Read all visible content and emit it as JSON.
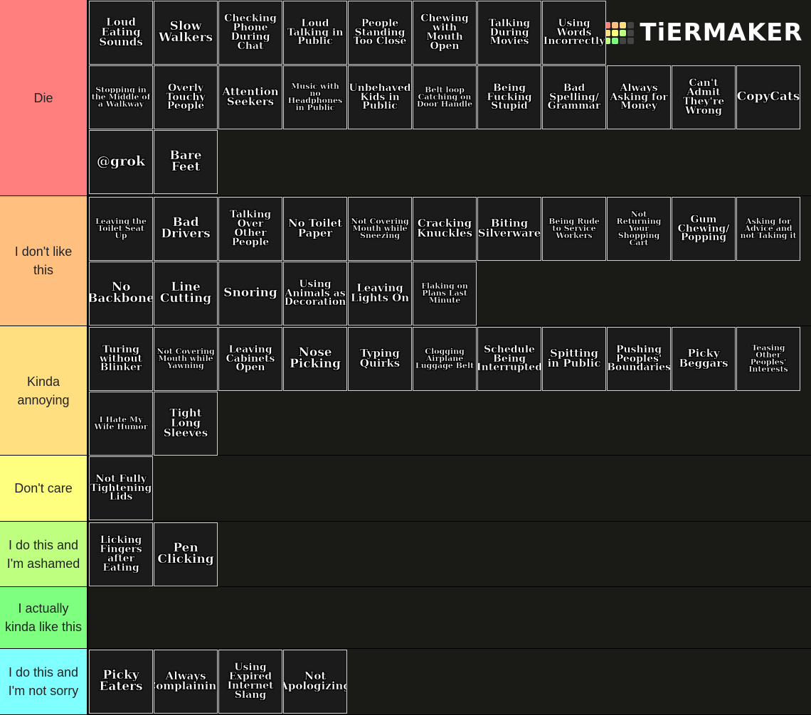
{
  "logo": "TiERMAKER",
  "tiers": [
    {
      "label": "Die",
      "color": "#ff7f7f",
      "items": [
        "Loud Eating Sounds",
        "Slow Walkers",
        "Checking Phone During Chat",
        "Loud Talking in Public",
        "People Standing Too Close",
        "Chewing with Mouth Open",
        "Talking During Movies",
        "Using Words Incorrectly",
        "Stopping in the Middle of a Walkway",
        "Overly Touchy People",
        "Attention Seekers",
        "Music with no Headphones in Public",
        "Unbehaved Kids in Public",
        "Belt loop Catching on Door Handle",
        "Being Fucking Stupid",
        "Bad Spelling/ Grammar",
        "Always Asking for Money",
        "Can't Admit They're Wrong",
        "CopyCats",
        "@grok",
        "Bare Feet"
      ]
    },
    {
      "label": "I don't like this",
      "color": "#ffbf7f",
      "items": [
        "Leaving the Toilet Seat Up",
        "Bad Drivers",
        "Talking Over Other People",
        "No Toilet Paper",
        "Not Covering Mouth while Sneezing",
        "Cracking Knuckles",
        "Biting Silverware",
        "Being Rude to Service Workers",
        "Not Returning Your Shopping Cart",
        "Gum Chewing/ Popping",
        "Asking for Advice and not Taking it",
        "No Backbone",
        "Line Cutting",
        "Snoring",
        "Using Animals as Decoration",
        "Leaving Lights On",
        "Flaking on Plans Last Minute"
      ]
    },
    {
      "label": "Kinda annoying",
      "color": "#ffdf7f",
      "items": [
        "Turing without Blinker",
        "Not Covering Mouth while Yawning",
        "Leaving Cabinets Open",
        "Nose Picking",
        "Typing Quirks",
        "Clogging Airplane Luggage Belt",
        "Schedule Being Interrupted",
        "Spitting in Public",
        "Pushing Peoples' Boundaries",
        "Picky Beggars",
        "Teasing Other Peoples' Interests",
        "I Hate My Wife Humor",
        "Tight Long Sleeves"
      ]
    },
    {
      "label": "Don't care",
      "color": "#ffff7f",
      "items": [
        "Not Fully Tightening Lids"
      ]
    },
    {
      "label": "I do this and I'm ashamed",
      "color": "#bfff7f",
      "items": [
        "Licking Fingers after Eating",
        "Pen Clicking"
      ]
    },
    {
      "label": "I actually kinda like this",
      "color": "#7fff7f",
      "items": []
    },
    {
      "label": "I do this and I'm not sorry",
      "color": "#7fffff",
      "items": [
        "Picky Eaters",
        "Always Complaining",
        "Using Expired Internet Slang",
        "Not Apologizing"
      ]
    }
  ]
}
